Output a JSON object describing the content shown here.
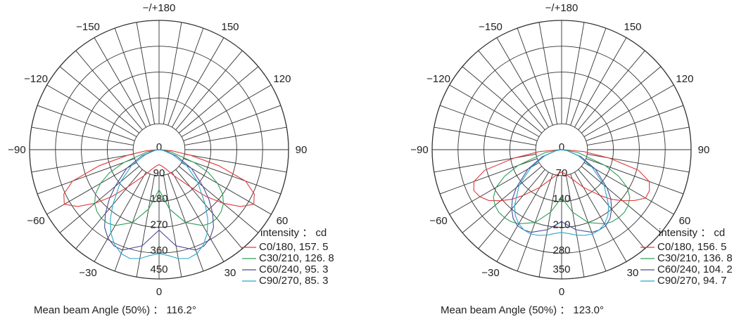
{
  "chart_data": [
    {
      "type": "polar-line",
      "angle_ticks": [
        "0",
        "30",
        "60",
        "90",
        "120",
        "150",
        "−/+180",
        "−150",
        "−120",
        "−90",
        "−60",
        "−30"
      ],
      "radial_ticks": [
        0,
        90,
        180,
        270,
        360,
        450
      ],
      "rmax": 450,
      "legend_title": "intensity ： cd",
      "series": [
        {
          "name": "C0/180, 157. 5",
          "color": "#e03a3a",
          "angles": [
            -90,
            -85,
            -80,
            -75,
            -70,
            -65,
            -60,
            -55,
            -50,
            -45,
            -40,
            -30,
            -20,
            -10,
            0,
            10,
            20,
            30,
            40,
            45,
            50,
            55,
            60,
            65,
            70,
            75,
            80,
            85,
            90
          ],
          "values": [
            5,
            45,
            110,
            215,
            320,
            365,
            380,
            345,
            290,
            230,
            170,
            105,
            72,
            58,
            52,
            58,
            72,
            105,
            170,
            230,
            290,
            345,
            380,
            365,
            320,
            215,
            110,
            45,
            5
          ]
        },
        {
          "name": "C30/210, 126. 8",
          "color": "#2f9e5a",
          "angles": [
            -90,
            -80,
            -70,
            -65,
            -60,
            -55,
            -50,
            -45,
            -40,
            -35,
            -30,
            -20,
            -10,
            0,
            10,
            20,
            30,
            35,
            40,
            45,
            50,
            55,
            60,
            65,
            70,
            80,
            90
          ],
          "values": [
            4,
            40,
            130,
            190,
            235,
            270,
            292,
            305,
            312,
            312,
            305,
            270,
            210,
            140,
            210,
            270,
            305,
            312,
            312,
            305,
            292,
            270,
            235,
            190,
            130,
            40,
            4
          ]
        },
        {
          "name": "C60/240, 95. 3",
          "color": "#4a4a96",
          "angles": [
            -80,
            -70,
            -60,
            -50,
            -45,
            -40,
            -35,
            -30,
            -25,
            -20,
            -10,
            0,
            10,
            20,
            25,
            30,
            35,
            40,
            45,
            50,
            60,
            70,
            80
          ],
          "values": [
            20,
            65,
            130,
            200,
            245,
            290,
            330,
            355,
            370,
            372,
            340,
            280,
            340,
            372,
            370,
            355,
            330,
            290,
            245,
            200,
            130,
            65,
            20
          ]
        },
        {
          "name": "C90/270, 85. 3",
          "color": "#2aa8c8",
          "angles": [
            -80,
            -70,
            -60,
            -50,
            -40,
            -35,
            -30,
            -25,
            -20,
            -15,
            -10,
            -5,
            0,
            5,
            10,
            15,
            20,
            25,
            30,
            35,
            40,
            50,
            60,
            70,
            80
          ],
          "values": [
            15,
            50,
            110,
            175,
            250,
            295,
            335,
            365,
            385,
            392,
            385,
            370,
            362,
            370,
            385,
            392,
            385,
            365,
            335,
            295,
            250,
            175,
            110,
            50,
            15
          ]
        }
      ],
      "footer": "Mean beam Angle (50%) ： 116.2°"
    },
    {
      "type": "polar-line",
      "angle_ticks": [
        "0",
        "30",
        "60",
        "90",
        "120",
        "150",
        "−/+180",
        "−150",
        "−120",
        "−90",
        "−60",
        "−30"
      ],
      "radial_ticks": [
        0,
        70,
        140,
        210,
        280,
        350
      ],
      "rmax": 350,
      "legend_title": "intensity ： cd",
      "series": [
        {
          "name": "C0/180, 156. 5",
          "color": "#e03a3a",
          "angles": [
            -90,
            -85,
            -80,
            -75,
            -70,
            -65,
            -60,
            -55,
            -50,
            -45,
            -40,
            -30,
            -20,
            -10,
            0,
            10,
            20,
            30,
            40,
            45,
            50,
            55,
            60,
            65,
            70,
            75,
            80,
            85,
            90
          ],
          "values": [
            5,
            60,
            130,
            215,
            252,
            262,
            255,
            240,
            215,
            190,
            162,
            118,
            85,
            68,
            60,
            68,
            85,
            118,
            162,
            190,
            215,
            240,
            262,
            262,
            252,
            215,
            130,
            60,
            5
          ]
        },
        {
          "name": "C30/210, 136. 8",
          "color": "#2f9e5a",
          "angles": [
            -90,
            -80,
            -70,
            -65,
            -60,
            -55,
            -50,
            -45,
            -40,
            -35,
            -30,
            -20,
            -10,
            0,
            10,
            20,
            30,
            35,
            40,
            45,
            50,
            55,
            60,
            65,
            70,
            80,
            90
          ],
          "values": [
            4,
            45,
            125,
            170,
            205,
            225,
            235,
            240,
            240,
            238,
            232,
            210,
            172,
            130,
            172,
            210,
            232,
            238,
            240,
            240,
            235,
            225,
            205,
            170,
            125,
            45,
            4
          ]
        },
        {
          "name": "C60/240, 104. 2",
          "color": "#4a4a96",
          "angles": [
            -80,
            -70,
            -60,
            -50,
            -45,
            -40,
            -35,
            -30,
            -25,
            -20,
            -10,
            0,
            10,
            20,
            25,
            30,
            35,
            40,
            45,
            50,
            60,
            70,
            80
          ],
          "values": [
            15,
            55,
            105,
            160,
            188,
            210,
            228,
            238,
            240,
            238,
            220,
            195,
            220,
            238,
            240,
            238,
            228,
            210,
            188,
            160,
            105,
            55,
            15
          ]
        },
        {
          "name": "C90/270, 94. 7",
          "color": "#2aa8c8",
          "angles": [
            -80,
            -70,
            -60,
            -50,
            -40,
            -35,
            -30,
            -25,
            -20,
            -15,
            -10,
            -5,
            0,
            5,
            10,
            15,
            20,
            25,
            30,
            35,
            40,
            50,
            60,
            70,
            80
          ],
          "values": [
            15,
            48,
            95,
            150,
            198,
            218,
            232,
            240,
            243,
            240,
            235,
            228,
            224,
            228,
            235,
            240,
            243,
            240,
            232,
            218,
            198,
            150,
            95,
            48,
            15
          ]
        }
      ],
      "footer": "Mean beam Angle (50%) ： 123.0°"
    }
  ]
}
